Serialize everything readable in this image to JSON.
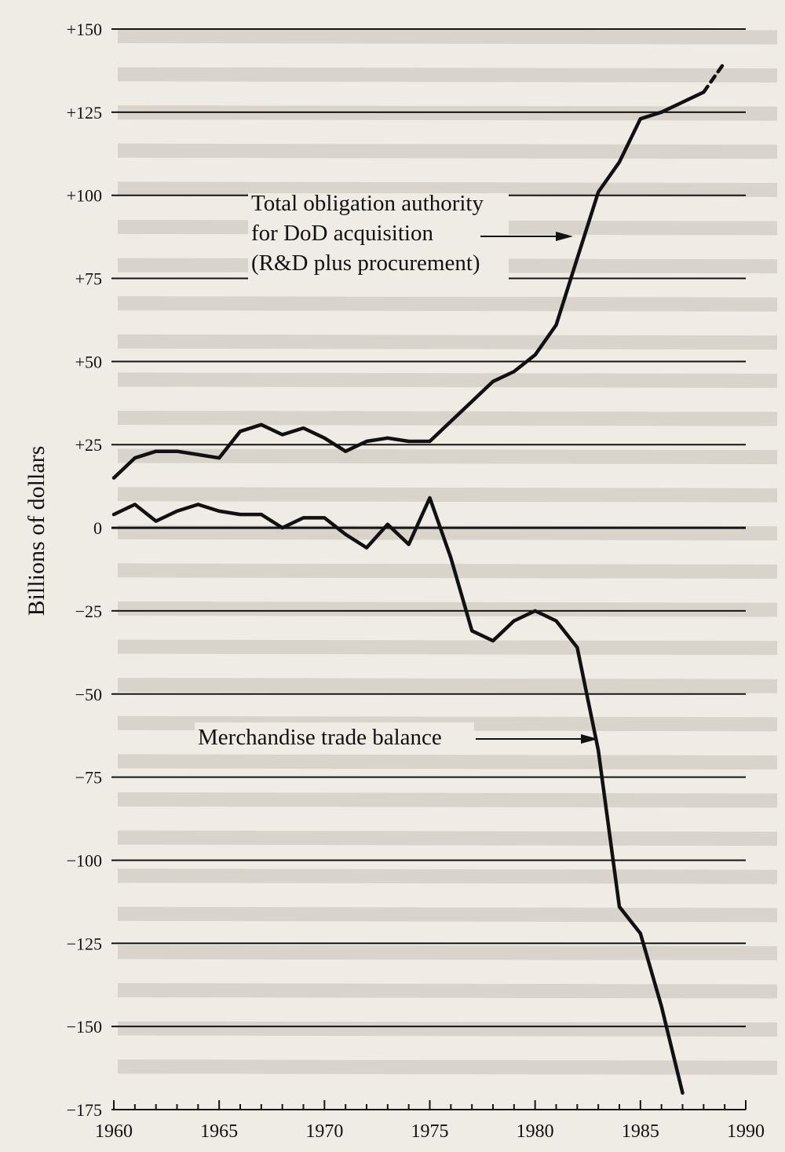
{
  "chart_data": {
    "type": "line",
    "title": "",
    "xlabel": "",
    "ylabel": "Billions of dollars",
    "xlim": [
      1960,
      1990
    ],
    "ylim": [
      -175,
      150
    ],
    "y_ticks": [
      150,
      125,
      100,
      75,
      50,
      25,
      0,
      -25,
      -50,
      -75,
      -100,
      -125,
      -150,
      -175
    ],
    "y_tick_labels": [
      "+150",
      "+125",
      "+100",
      "+75",
      "+50",
      "+25",
      "0",
      "−25",
      "−50",
      "−75",
      "−100",
      "−125",
      "−150",
      "−175"
    ],
    "x_ticks": [
      1960,
      1965,
      1970,
      1975,
      1980,
      1985,
      1990
    ],
    "x_tick_labels": [
      "1960",
      "1965",
      "1970",
      "1975",
      "1980",
      "1985",
      "1990"
    ],
    "grid": "horizontal",
    "legend": "none",
    "line_color": "#111111",
    "series": [
      {
        "key": "dod",
        "x": [
          1960,
          1961,
          1962,
          1963,
          1964,
          1965,
          1966,
          1967,
          1968,
          1969,
          1970,
          1971,
          1972,
          1973,
          1974,
          1975,
          1976,
          1977,
          1978,
          1979,
          1980,
          1981,
          1982,
          1983,
          1984,
          1985,
          1986,
          1987,
          1988
        ],
        "y": [
          15,
          21,
          23,
          23,
          22,
          21,
          29,
          31,
          28,
          30,
          27,
          23,
          26,
          27,
          26,
          26,
          32,
          38,
          44,
          47,
          52,
          61,
          81,
          101,
          110,
          123,
          125,
          128,
          131
        ],
        "projected": {
          "x": [
            1988,
            1989
          ],
          "y": [
            131,
            140
          ]
        }
      },
      {
        "key": "trade",
        "x": [
          1960,
          1961,
          1962,
          1963,
          1964,
          1965,
          1966,
          1967,
          1968,
          1969,
          1970,
          1971,
          1972,
          1973,
          1974,
          1975,
          1976,
          1977,
          1978,
          1979,
          1980,
          1981,
          1982,
          1983,
          1984,
          1985,
          1986,
          1987
        ],
        "y": [
          4,
          7,
          2,
          5,
          7,
          5,
          4,
          4,
          0,
          3,
          3,
          -2,
          -6,
          1,
          -5,
          9,
          -9,
          -31,
          -34,
          -28,
          -25,
          -28,
          -36,
          -67,
          -114,
          -122,
          -144,
          -170
        ]
      }
    ],
    "annotations": [
      {
        "lines": [
          "Total obligation authority",
          "for DoD acquisition",
          "(R&D plus procurement)"
        ],
        "points_to": "dod"
      },
      {
        "lines": [
          "Merchandise trade balance"
        ],
        "points_to": "trade"
      }
    ]
  }
}
